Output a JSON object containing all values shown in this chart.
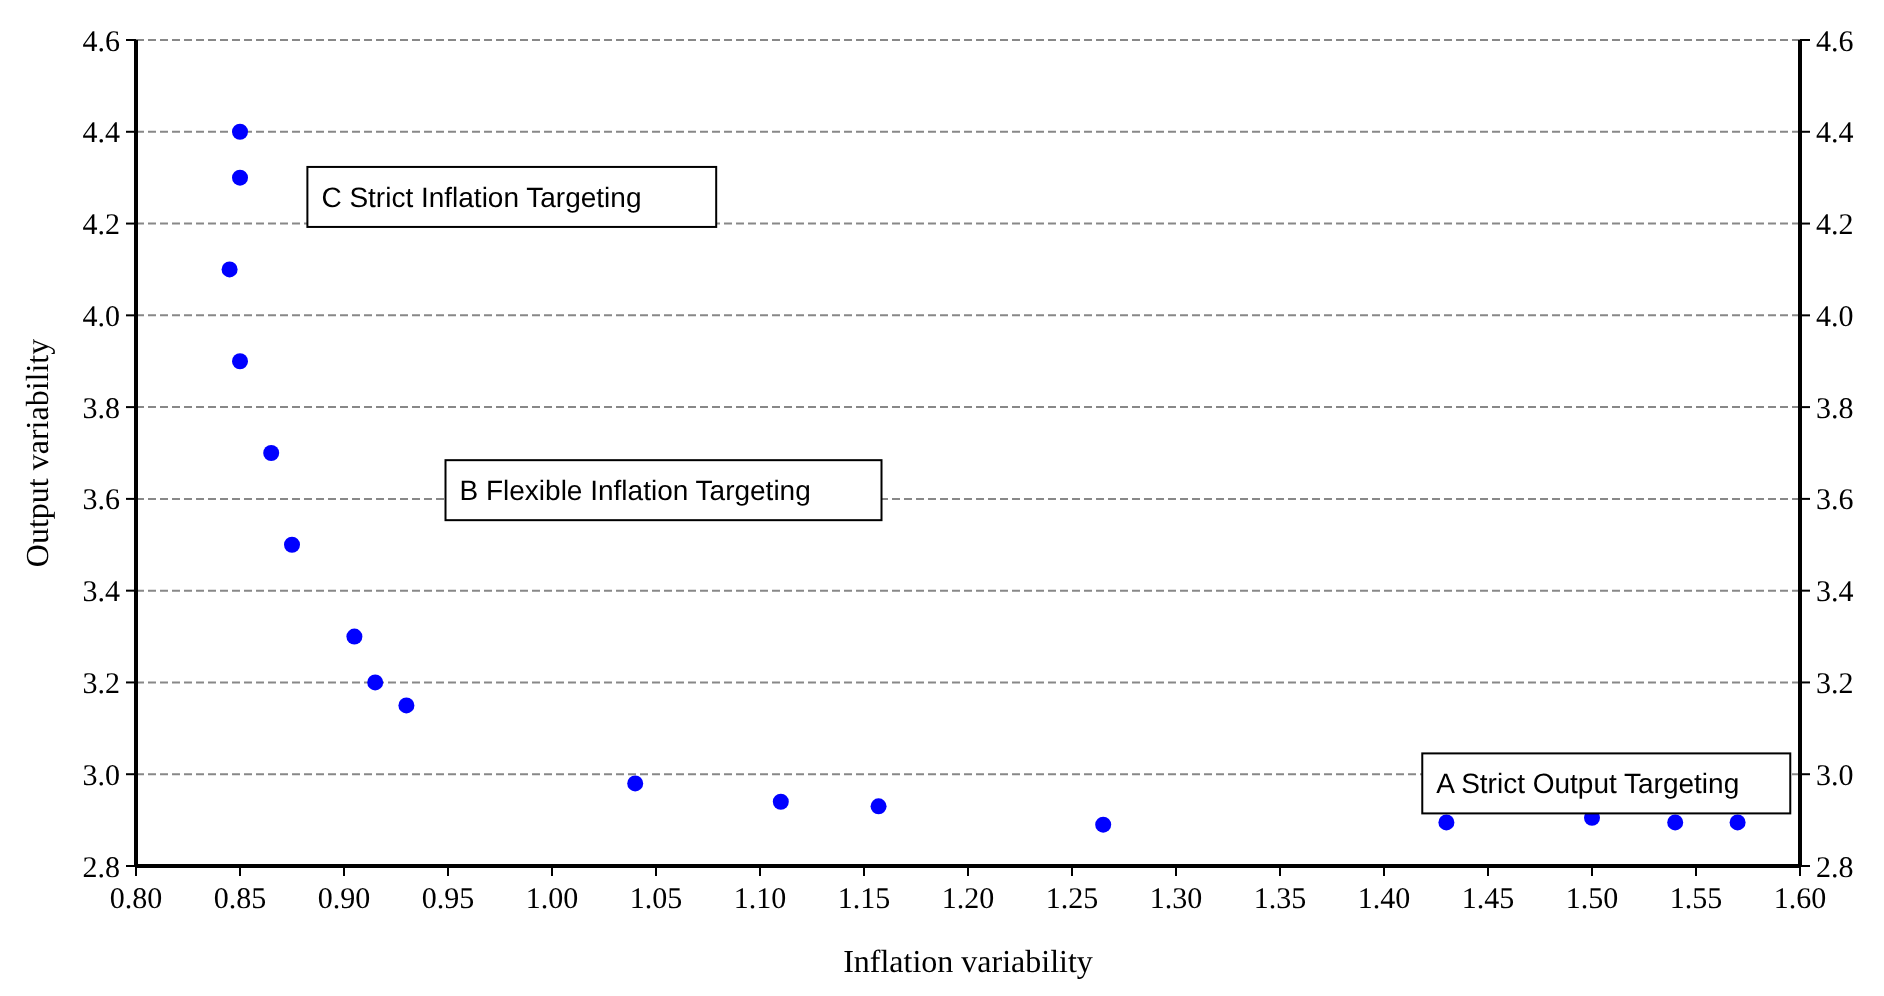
{
  "chart_data": {
    "type": "scatter",
    "xlabel": "Inflation variability",
    "ylabel": "Output variability",
    "x": [
      0.85,
      0.85,
      0.845,
      0.85,
      0.865,
      0.875,
      0.905,
      0.915,
      0.93,
      1.04,
      1.11,
      1.157,
      1.265,
      1.43,
      1.5,
      1.54,
      1.57
    ],
    "series": [
      {
        "color": "#0000ff",
        "values": [
          4.4,
          4.3,
          4.1,
          3.9,
          3.7,
          3.5,
          3.3,
          3.2,
          3.15,
          2.98,
          2.94,
          2.93,
          2.89,
          2.895,
          2.905,
          2.895,
          2.895
        ]
      }
    ],
    "annotations": [
      "C Strict Inflation Targeting",
      "B Flexible Inflation Targeting",
      "A Strict Output Targeting"
    ],
    "xlim": [
      0.8,
      1.6
    ],
    "xticks": [
      {
        "value": 0.8,
        "label": "0.80"
      },
      {
        "value": 0.85,
        "label": "0.85"
      },
      {
        "value": 0.9,
        "label": "0.90"
      },
      {
        "value": 0.95,
        "label": "0.95"
      },
      {
        "value": 1.0,
        "label": "1.00"
      },
      {
        "value": 1.05,
        "label": "1.05"
      },
      {
        "value": 1.1,
        "label": "1.10"
      },
      {
        "value": 1.15,
        "label": "1.15"
      },
      {
        "value": 1.2,
        "label": "1.20"
      },
      {
        "value": 1.25,
        "label": "1.25"
      },
      {
        "value": 1.3,
        "label": "1.30"
      },
      {
        "value": 1.35,
        "label": "1.35"
      },
      {
        "value": 1.4,
        "label": "1.40"
      },
      {
        "value": 1.45,
        "label": "1.45"
      },
      {
        "value": 1.5,
        "label": "1.50"
      },
      {
        "value": 1.55,
        "label": "1.55"
      },
      {
        "value": 1.6,
        "label": "1.60"
      }
    ],
    "ylim": [
      2.8,
      4.6
    ],
    "yticks": [
      {
        "value": 2.8,
        "label": "2.8"
      },
      {
        "value": 3.0,
        "label": "3.0"
      },
      {
        "value": 3.2,
        "label": "3.2"
      },
      {
        "value": 3.4,
        "label": "3.4"
      },
      {
        "value": 3.6,
        "label": "3.6"
      },
      {
        "value": 3.8,
        "label": "3.8"
      },
      {
        "value": 4.0,
        "label": "4.0"
      },
      {
        "value": 4.2,
        "label": "4.2"
      },
      {
        "value": 4.4,
        "label": "4.4"
      },
      {
        "value": 4.6,
        "label": "4.6"
      }
    ],
    "y2lim": [
      2.8,
      4.6
    ],
    "y2ticks": [
      {
        "value": 2.8,
        "label": "2.8"
      },
      {
        "value": 3.0,
        "label": "3.0"
      },
      {
        "value": 3.2,
        "label": "3.2"
      },
      {
        "value": 3.4,
        "label": "3.4"
      },
      {
        "value": 3.6,
        "label": "3.6"
      },
      {
        "value": 3.8,
        "label": "3.8"
      },
      {
        "value": 4.0,
        "label": "4.0"
      },
      {
        "value": 4.2,
        "label": "4.2"
      },
      {
        "value": 4.4,
        "label": "4.4"
      },
      {
        "value": 4.6,
        "label": "4.6"
      }
    ],
    "grid": "y",
    "marker": "circle"
  }
}
